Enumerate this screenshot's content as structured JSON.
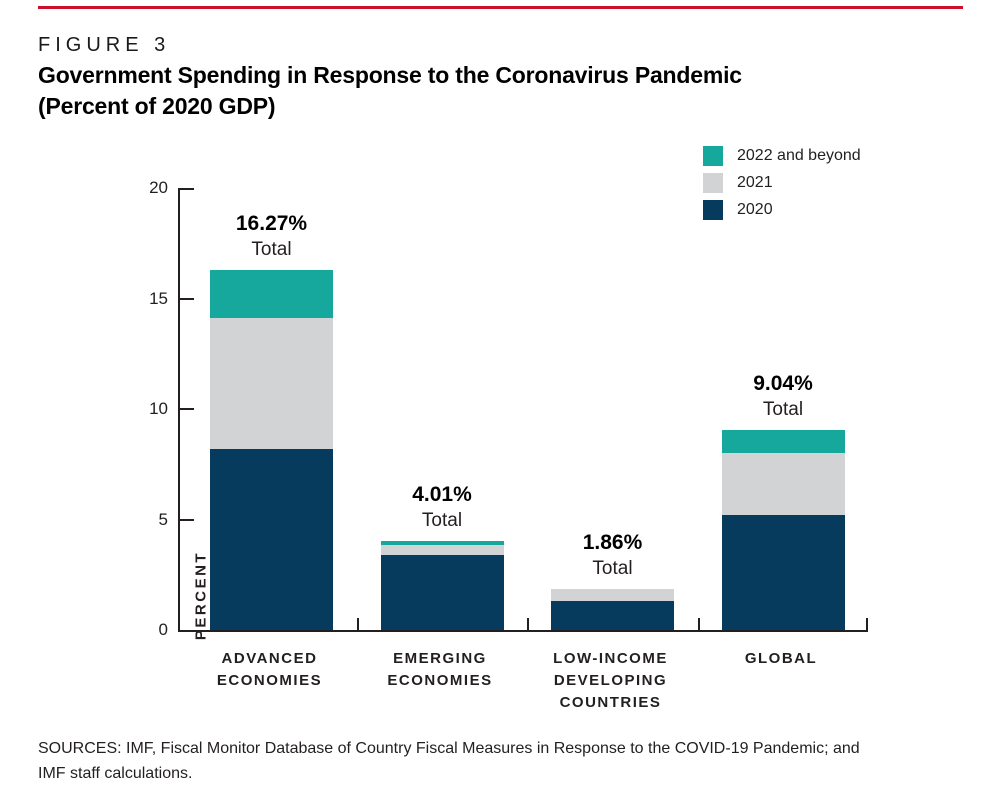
{
  "accent_color": "#CE0E2D",
  "figure": {
    "label": "FIGURE 3",
    "title_line1": "Government Spending in Response to the Coronavirus Pandemic",
    "title_line2": "(Percent of 2020 GDP)"
  },
  "legend": [
    {
      "label": "2022 and beyond",
      "color": "#16A89C"
    },
    {
      "label": "2021",
      "color": "#D1D3D4"
    },
    {
      "label": "2020",
      "color": "#073B5E"
    }
  ],
  "chart_data": {
    "type": "bar",
    "stacked": true,
    "title": "Government Spending in Response to the Coronavirus Pandemic (Percent of 2020 GDP)",
    "xlabel": "",
    "ylabel": "PERCENT",
    "ylim": [
      0,
      20
    ],
    "yticks": [
      0,
      5,
      10,
      15,
      20
    ],
    "grid": false,
    "legend_position": "top-right",
    "categories": [
      "ADVANCED ECONOMIES",
      "EMERGING ECONOMIES",
      "LOW-INCOME DEVELOPING COUNTRIES",
      "GLOBAL"
    ],
    "category_lines": [
      [
        "ADVANCED",
        "ECONOMIES"
      ],
      [
        "EMERGING",
        "ECONOMIES"
      ],
      [
        "LOW-INCOME",
        "DEVELOPING",
        "COUNTRIES"
      ],
      [
        "GLOBAL"
      ]
    ],
    "series": [
      {
        "name": "2020",
        "color": "#073B5E",
        "values": [
          8.2,
          3.4,
          1.32,
          5.2
        ]
      },
      {
        "name": "2021",
        "color": "#D1D3D4",
        "values": [
          5.9,
          0.45,
          0.54,
          2.8
        ]
      },
      {
        "name": "2022 and beyond",
        "color": "#16A89C",
        "values": [
          2.17,
          0.16,
          0.0,
          1.04
        ]
      }
    ],
    "totals": [
      "16.27%",
      "4.01%",
      "1.86%",
      "9.04%"
    ],
    "totals_sub_label": "Total"
  },
  "sources": {
    "line1": "SOURCES: IMF, Fiscal Monitor Database of Country Fiscal Measures in Response to the COVID-19 Pandemic; and",
    "line2": "IMF staff calculations."
  }
}
